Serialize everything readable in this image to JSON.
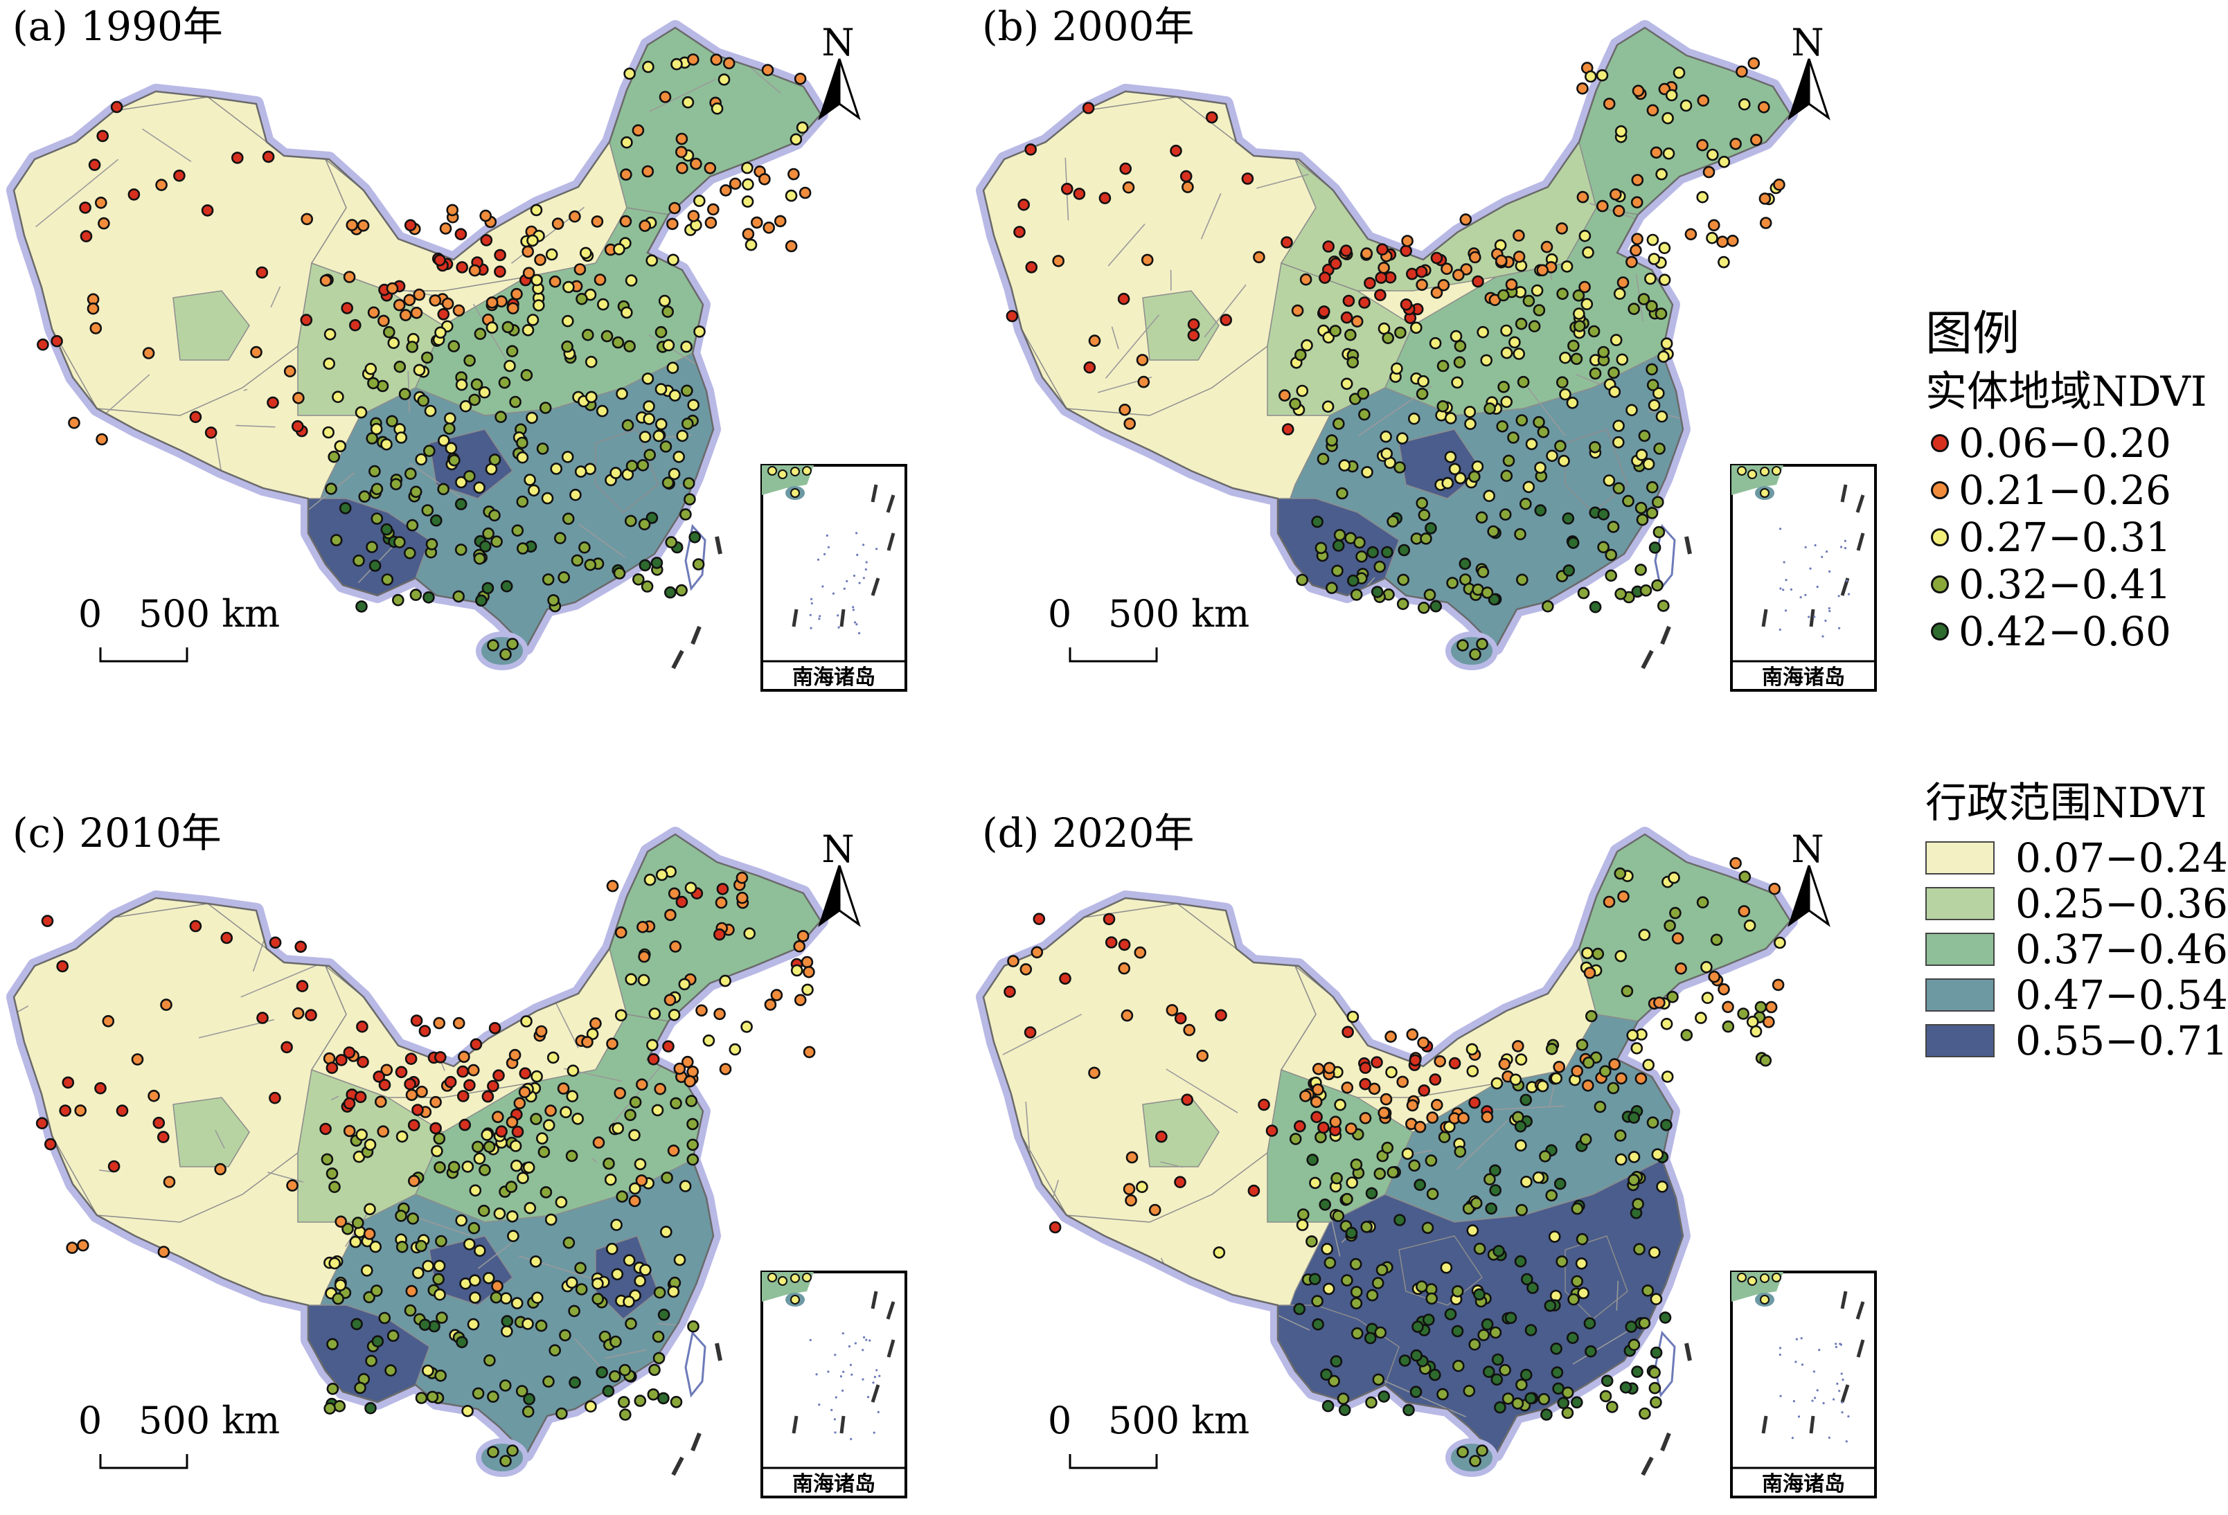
{
  "panels": [
    {
      "label": "(a) 1990年",
      "scale_zero": "0",
      "scale_label": "500 km",
      "north": "N",
      "inset_label": "南海诸岛"
    },
    {
      "label": "(b) 2000年",
      "scale_zero": "0",
      "scale_label": "500 km",
      "north": "N",
      "inset_label": "南海诸岛"
    },
    {
      "label": "(c) 2010年",
      "scale_zero": "0",
      "scale_label": "500 km",
      "north": "N",
      "inset_label": "南海诸岛"
    },
    {
      "label": "(d) 2020年",
      "scale_zero": "0",
      "scale_label": "500 km",
      "north": "N",
      "inset_label": "南海诸岛"
    }
  ],
  "legend": {
    "title": "图例",
    "points_title": "实体地域NDVI",
    "points": [
      {
        "label": "0.06−0.20",
        "color": "#d7301f"
      },
      {
        "label": "0.21−0.26",
        "color": "#f08c3c"
      },
      {
        "label": "0.27−0.31",
        "color": "#f2ee7a"
      },
      {
        "label": "0.32−0.41",
        "color": "#8aa83a"
      },
      {
        "label": "0.42−0.60",
        "color": "#2e6b2e"
      }
    ],
    "areas_title": "行政范围NDVI",
    "areas": [
      {
        "label": "0.07−0.24",
        "color": "#f3f0c4"
      },
      {
        "label": "0.25−0.36",
        "color": "#b7d3a2"
      },
      {
        "label": "0.37−0.46",
        "color": "#8fbf98"
      },
      {
        "label": "0.47−0.54",
        "color": "#6d99a3"
      },
      {
        "label": "0.55−0.71",
        "color": "#4a5d8c"
      }
    ]
  }
}
